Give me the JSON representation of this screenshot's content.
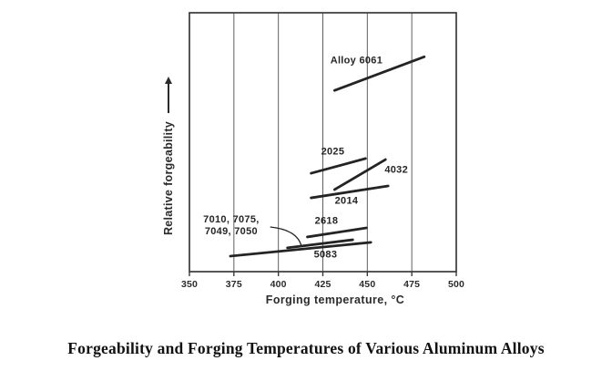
{
  "caption": "Forgeability and Forging Temperatures of Various Aluminum Alloys",
  "colors": {
    "background": "#ffffff",
    "alloy_line": "#242424",
    "frame": "#3a3a3a",
    "grid": "#5f5f5f",
    "text": "#2b2b2b"
  },
  "chart_data": {
    "type": "line",
    "title": "",
    "xlabel": "Forging temperature, °C",
    "ylabel": "Relative forgeability",
    "xlim": [
      350,
      500
    ],
    "xticks": [
      350,
      375,
      400,
      425,
      450,
      475,
      500
    ],
    "ylim": [
      0,
      1
    ],
    "yticks": [],
    "grid": "vertical-gridlines-only",
    "y_axis_style": "qualitative axis, no tick labels, upward arrow means increasing forgeability",
    "legend_position": "labels-next-to-lines",
    "series": [
      {
        "name": "Alloy 6061",
        "label": "Alloy 6061",
        "x": [
          431.6,
          482.0
        ],
        "y": [
          0.7,
          0.83
        ],
        "label_pos": [
          443.9,
          0.813
        ]
      },
      {
        "name": "2025",
        "label": "2025",
        "x": [
          418.4,
          449.0
        ],
        "y": [
          0.38,
          0.437
        ],
        "label_pos": [
          430.6,
          0.461
        ]
      },
      {
        "name": "4032",
        "label": "4032",
        "x": [
          431.6,
          460.2
        ],
        "y": [
          0.317,
          0.433
        ],
        "label_pos": [
          466.3,
          0.391
        ]
      },
      {
        "name": "2014",
        "label": "2014",
        "x": [
          418.4,
          461.7
        ],
        "y": [
          0.285,
          0.331
        ],
        "label_pos": [
          438.3,
          0.271
        ]
      },
      {
        "name": "2618",
        "label": "2618",
        "x": [
          416.3,
          449.5
        ],
        "y": [
          0.134,
          0.169
        ],
        "label_pos": [
          427.0,
          0.194
        ]
      },
      {
        "name": "7010, 7075, 7049, 7050",
        "label": "7010, 7075,\n7049, 7050",
        "x": [
          405.1,
          441.8
        ],
        "y": [
          0.092,
          0.123
        ],
        "label_pos": [
          373.5,
          0.176
        ]
      },
      {
        "name": "5083",
        "label": "5083",
        "x": [
          373.0,
          452.0
        ],
        "y": [
          0.06,
          0.113
        ],
        "label_pos": [
          426.5,
          0.063
        ]
      }
    ],
    "callout": {
      "points_to": "7010, 7075, 7049, 7050",
      "from": [
        395.4,
        0.1725
      ],
      "ctrl": [
        410.2,
        0.162
      ],
      "to": [
        412.8,
        0.102
      ]
    }
  }
}
